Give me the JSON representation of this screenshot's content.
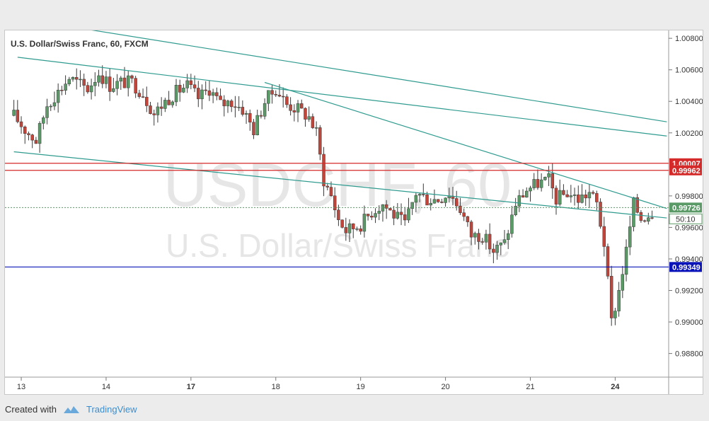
{
  "chart_data": {
    "type": "candlestick",
    "title": "U.S. Dollar/Swiss Franc, 60, FXCM",
    "watermark_symbol": "USDCHF, 60",
    "watermark_name": "U.S. Dollar/Swiss Franc",
    "ylim": [
      0.9865,
      1.0085
    ],
    "y_ticks": [
      1.008,
      1.006,
      1.004,
      1.002,
      0.998,
      0.996,
      0.994,
      0.992,
      0.99,
      0.988
    ],
    "y_tick_labels": [
      "1.00800",
      "1.00600",
      "1.00400",
      "1.00200",
      "0.99800",
      "0.99600",
      "0.99400",
      "0.99200",
      "0.99000",
      "0.98800"
    ],
    "x_tick_labels": [
      "13",
      "14",
      "17",
      "18",
      "19",
      "20",
      "21",
      "24"
    ],
    "x_tick_index": [
      2,
      25,
      48,
      71,
      94,
      117,
      140,
      163
    ],
    "bar_count": 177,
    "up_color": "#5a9a66",
    "down_color": "#c0453a",
    "wick_color": "#3a3a3a",
    "anchors": [
      [
        0,
        1.0031
      ],
      [
        3,
        1.0022
      ],
      [
        6,
        1.0015
      ],
      [
        9,
        1.0038
      ],
      [
        12,
        1.0046
      ],
      [
        15,
        1.0055
      ],
      [
        17,
        1.0052
      ],
      [
        20,
        1.0048
      ],
      [
        23,
        1.0058
      ],
      [
        26,
        1.005
      ],
      [
        29,
        1.0052
      ],
      [
        32,
        1.0052
      ],
      [
        35,
        1.0045
      ],
      [
        38,
        1.0032
      ],
      [
        41,
        1.004
      ],
      [
        44,
        1.0046
      ],
      [
        47,
        1.005
      ],
      [
        50,
        1.0042
      ],
      [
        53,
        1.0048
      ],
      [
        56,
        1.0038
      ],
      [
        59,
        1.004
      ],
      [
        62,
        1.0035
      ],
      [
        65,
        1.0022
      ],
      [
        68,
        1.004
      ],
      [
        71,
        1.0048
      ],
      [
        74,
        1.0038
      ],
      [
        77,
        1.0035
      ],
      [
        80,
        1.003
      ],
      [
        82,
        1.002
      ],
      [
        84,
        0.999
      ],
      [
        86,
        0.998
      ],
      [
        88,
        0.9965
      ],
      [
        90,
        0.9958
      ],
      [
        92,
        0.996
      ],
      [
        94,
        0.9962
      ],
      [
        97,
        0.997
      ],
      [
        100,
        0.9975
      ],
      [
        103,
        0.9968
      ],
      [
        106,
        0.9962
      ],
      [
        109,
        0.9982
      ],
      [
        112,
        0.9978
      ],
      [
        115,
        0.9978
      ],
      [
        118,
        0.9982
      ],
      [
        121,
        0.9972
      ],
      [
        124,
        0.9955
      ],
      [
        127,
        0.9955
      ],
      [
        130,
        0.9945
      ],
      [
        133,
        0.995
      ],
      [
        136,
        0.9975
      ],
      [
        139,
        0.9984
      ],
      [
        142,
        0.9988
      ],
      [
        145,
        0.999
      ],
      [
        147,
        0.9978
      ],
      [
        150,
        0.9982
      ],
      [
        153,
        0.9978
      ],
      [
        156,
        0.9982
      ],
      [
        158,
        0.9975
      ],
      [
        160,
        0.995
      ],
      [
        161,
        0.9925
      ],
      [
        162,
        0.99
      ],
      [
        164,
        0.992
      ],
      [
        166,
        0.9945
      ],
      [
        168,
        0.9975
      ],
      [
        170,
        0.9966
      ],
      [
        173,
        0.997
      ]
    ],
    "trendlines": [
      {
        "from": [
          -5,
          1.0095
        ],
        "to": [
          177,
          1.0027
        ],
        "color": "#2f9b8f"
      },
      {
        "from": [
          1,
          1.0068
        ],
        "to": [
          177,
          1.0018
        ],
        "color": "#2f9b8f"
      },
      {
        "from": [
          0,
          1.0008
        ],
        "to": [
          177,
          0.9966
        ],
        "color": "#2f9b8f"
      },
      {
        "from": [
          68,
          1.0052
        ],
        "to": [
          177,
          0.9972
        ],
        "color": "#2f9b8f"
      }
    ],
    "hlines": [
      {
        "value": 1.00007,
        "label": "1.00007",
        "color": "#d42a2a"
      },
      {
        "value": 0.99962,
        "label": "0.99962",
        "color": "#d42a2a"
      },
      {
        "value": 0.99349,
        "label": "0.99349",
        "color": "#0a14b8"
      }
    ],
    "last_price": {
      "value": 0.99726,
      "label": "0.99726",
      "color": "#5a9a66"
    },
    "countdown": "50:10"
  },
  "footer": {
    "created_with": "Created with",
    "brand": "TradingView",
    "brand_color": "#3a8ed0"
  }
}
